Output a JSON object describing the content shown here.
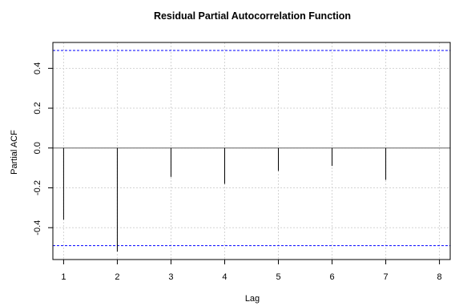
{
  "chart_data": {
    "type": "bar",
    "title": "Residual Partial Autocorrelation Function",
    "xlabel": "Lag",
    "ylabel": "Partial ACF",
    "x": [
      1,
      2,
      3,
      4,
      5,
      6,
      7
    ],
    "values": [
      -0.36,
      -0.52,
      -0.145,
      -0.18,
      -0.115,
      -0.09,
      -0.16
    ],
    "xlim": [
      0.8,
      8.2
    ],
    "ylim": [
      -0.56,
      0.53
    ],
    "xticks": [
      1,
      2,
      3,
      4,
      5,
      6,
      7,
      8
    ],
    "yticks": [
      -0.4,
      -0.2,
      0.0,
      0.2,
      0.4
    ],
    "ytick_labels": [
      "-0.4",
      "-0.2",
      "0.0",
      "0.2",
      "0.4"
    ],
    "confidence_bounds": [
      0.49,
      -0.49
    ],
    "zero_line": 0,
    "grid": true,
    "colors": {
      "bars": "#000000",
      "confidence": "#0000ff",
      "grid": "#d3d3d3",
      "zero_line": "#808080"
    }
  }
}
